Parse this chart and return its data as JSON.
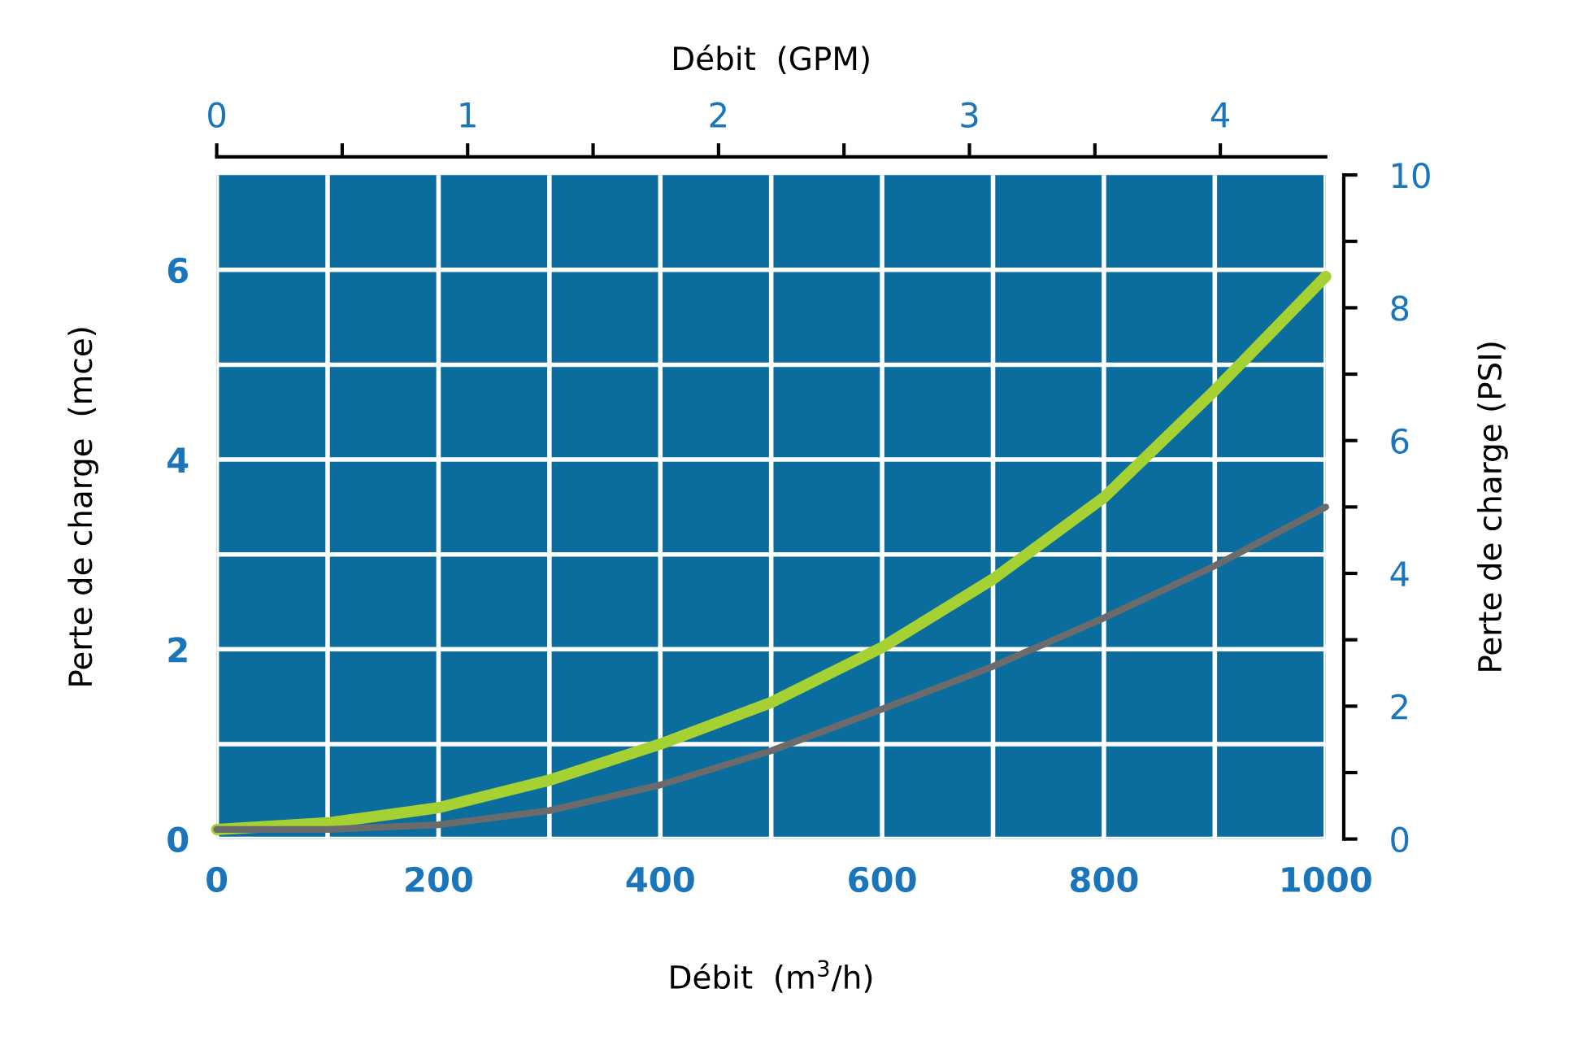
{
  "chart_data": {
    "type": "line",
    "xlabel": "Débit  (m$^{3}$/h)",
    "ylabel": "Perte de charge  (mce)",
    "y2label": "Perte de charge (PSI)",
    "x2label": "Débit  (GPM)",
    "x": [
      0,
      100,
      200,
      300,
      400,
      500,
      600,
      700,
      800,
      900,
      1000
    ],
    "series": [
      {
        "color": "#a6d132",
        "values": [
          0.1,
          0.17,
          0.33,
          0.62,
          1.0,
          1.44,
          2.02,
          2.74,
          3.6,
          4.73,
          5.93
        ]
      },
      {
        "color": "#6b6b6b",
        "values": [
          0.1,
          0.1,
          0.15,
          0.3,
          0.57,
          0.93,
          1.37,
          1.82,
          2.33,
          2.88,
          3.5
        ]
      }
    ],
    "xlim": [
      0,
      1000
    ],
    "xticks": [
      0,
      {
        "value": 100,
        "label": null
      },
      200,
      {
        "value": 300,
        "label": null
      },
      400,
      {
        "value": 500,
        "label": null
      },
      600,
      {
        "value": 700,
        "label": null
      },
      800,
      {
        "value": 900,
        "label": null
      },
      1000
    ],
    "ylim": [
      0,
      7
    ],
    "yticks": [
      0,
      {
        "value": 1,
        "label": null
      },
      2,
      {
        "value": 3,
        "label": null
      },
      4,
      {
        "value": 5,
        "label": null
      },
      6
    ],
    "y2lim": [
      0,
      10
    ],
    "y2ticks": [
      0,
      {
        "value": 1,
        "label": null
      },
      2,
      {
        "value": 3,
        "label": null
      },
      4,
      {
        "value": 5,
        "label": null
      },
      6,
      {
        "value": 7,
        "label": null
      },
      8,
      {
        "value": 9,
        "label": null
      },
      10
    ],
    "x2lim": [
      0,
      4.42
    ],
    "x2ticks": [
      0,
      {
        "value": 0.5,
        "label": null
      },
      1,
      {
        "value": 1.5,
        "label": null
      },
      2,
      {
        "value": 2.5,
        "label": null
      },
      3,
      {
        "value": 3.5,
        "label": null
      },
      4
    ],
    "grid": true,
    "marker": "none",
    "line_style": "solid"
  }
}
